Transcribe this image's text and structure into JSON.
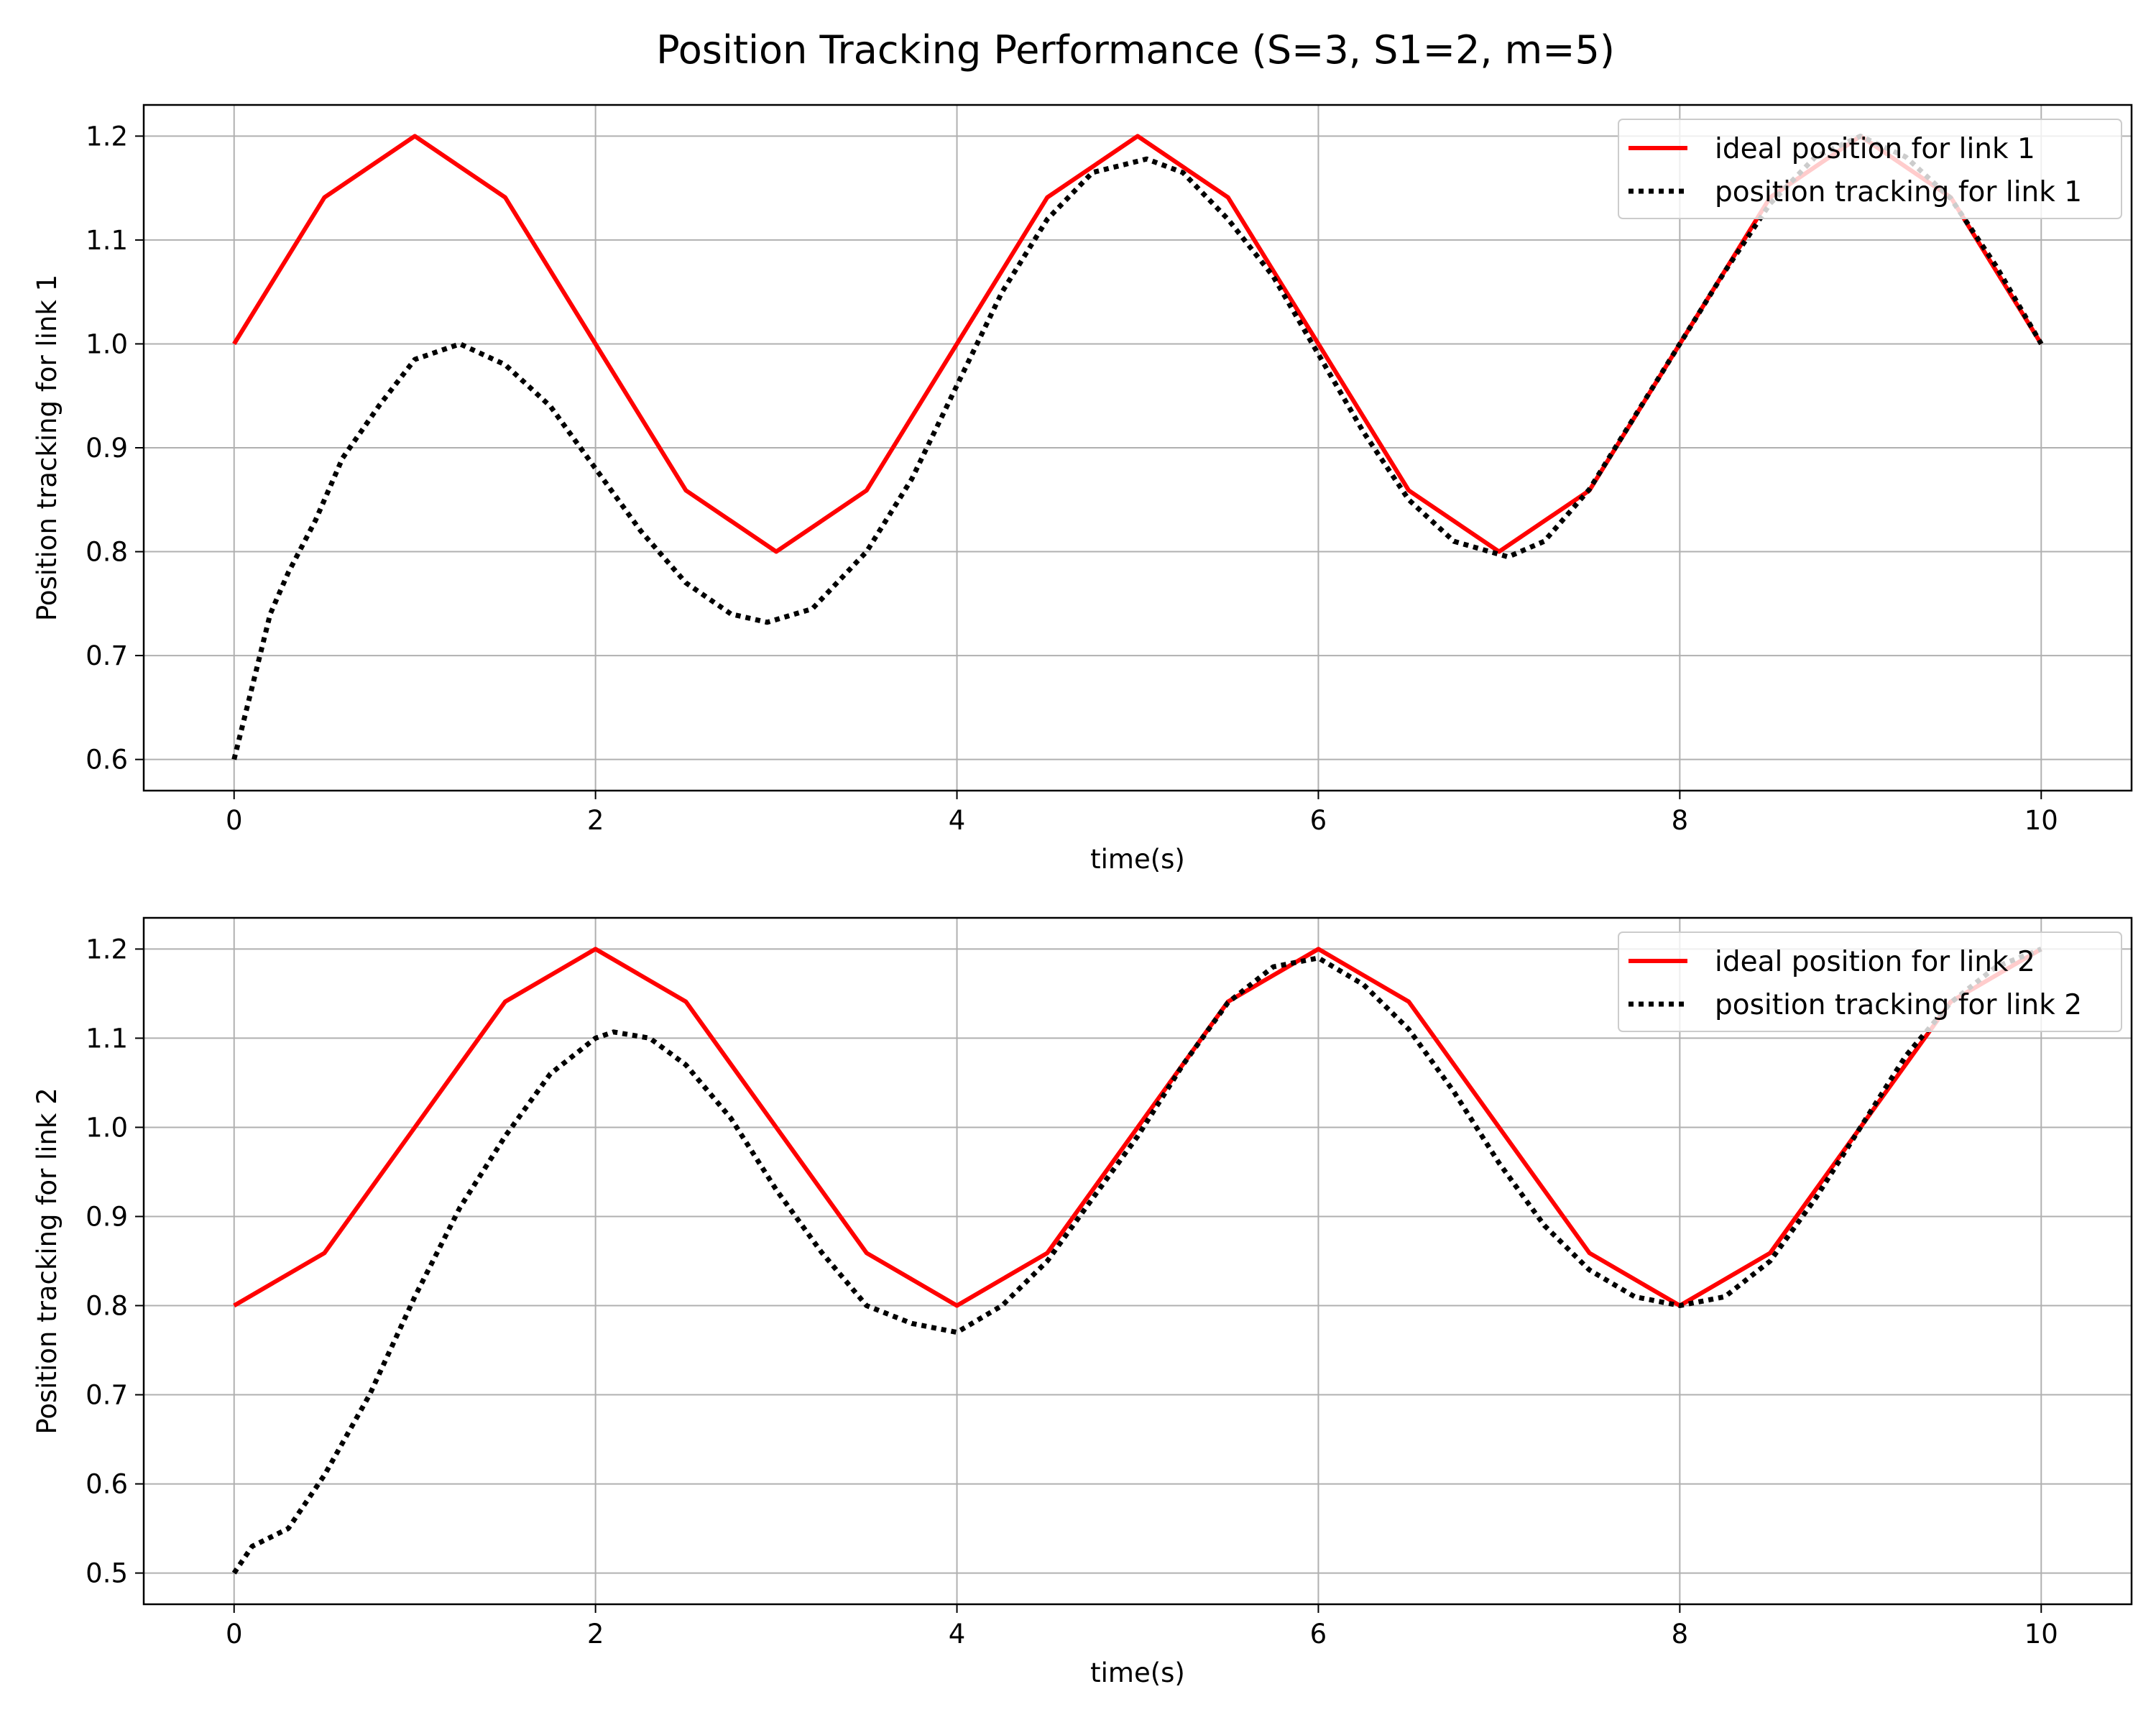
{
  "figure": {
    "title": "Position Tracking Performance (S=3, S1=2, m=5)"
  },
  "colors": {
    "ideal": "#ff0000",
    "tracking": "#000000",
    "grid": "#b0b0b0",
    "frame": "#000000"
  },
  "chart_data": [
    {
      "type": "line",
      "xlabel": "time(s)",
      "ylabel": "Position tracking for link 1",
      "xlim": [
        -0.5,
        10.5
      ],
      "ylim": [
        0.57,
        1.23
      ],
      "xticks": [
        0,
        2,
        4,
        6,
        8,
        10
      ],
      "xtick_labels": [
        "0",
        "2",
        "4",
        "6",
        "8",
        "10"
      ],
      "yticks": [
        0.6,
        0.7,
        0.8,
        0.9,
        1.0,
        1.1,
        1.2
      ],
      "ytick_labels": [
        "0.6",
        "0.7",
        "0.8",
        "0.9",
        "1.0",
        "1.1",
        "1.2"
      ],
      "grid": true,
      "legend_position": "top-right",
      "series": [
        {
          "name": "ideal position for link 1",
          "style": "solid",
          "x": [
            0,
            0.5,
            1,
            1.5,
            2,
            2.5,
            3,
            3.5,
            4,
            4.5,
            5,
            5.5,
            6,
            6.5,
            7,
            7.5,
            8,
            8.5,
            9,
            9.5,
            10
          ],
          "y": [
            1.0,
            1.141,
            1.2,
            1.141,
            1.0,
            0.859,
            0.8,
            0.859,
            1.0,
            1.141,
            1.2,
            1.141,
            1.0,
            0.859,
            0.8,
            0.859,
            1.0,
            1.141,
            1.2,
            1.141,
            1.0
          ]
        },
        {
          "name": "position tracking for link 1",
          "style": "dotted",
          "x": [
            0,
            0.1,
            0.2,
            0.3,
            0.45,
            0.6,
            0.8,
            1.0,
            1.25,
            1.5,
            1.75,
            2.0,
            2.25,
            2.5,
            2.75,
            2.95,
            3.2,
            3.5,
            3.75,
            4.0,
            4.25,
            4.5,
            4.75,
            5.05,
            5.25,
            5.5,
            5.75,
            6.0,
            6.25,
            6.5,
            6.75,
            7.05,
            7.25,
            7.5,
            7.75,
            8.0,
            8.25,
            8.5,
            8.75,
            9.0,
            9.25,
            9.5,
            9.75,
            10.0
          ],
          "y": [
            0.6,
            0.67,
            0.74,
            0.78,
            0.83,
            0.89,
            0.94,
            0.985,
            1.0,
            0.98,
            0.94,
            0.88,
            0.82,
            0.77,
            0.74,
            0.732,
            0.745,
            0.8,
            0.87,
            0.96,
            1.05,
            1.12,
            1.165,
            1.178,
            1.165,
            1.12,
            1.065,
            0.99,
            0.915,
            0.85,
            0.81,
            0.795,
            0.81,
            0.86,
            0.93,
            1.0,
            1.07,
            1.135,
            1.18,
            1.2,
            1.18,
            1.14,
            1.075,
            1.0
          ]
        }
      ]
    },
    {
      "type": "line",
      "xlabel": "time(s)",
      "ylabel": "Position tracking for link 2",
      "xlim": [
        -0.5,
        10.5
      ],
      "ylim": [
        0.465,
        1.235
      ],
      "xticks": [
        0,
        2,
        4,
        6,
        8,
        10
      ],
      "xtick_labels": [
        "0",
        "2",
        "4",
        "6",
        "8",
        "10"
      ],
      "yticks": [
        0.5,
        0.6,
        0.7,
        0.8,
        0.9,
        1.0,
        1.1,
        1.2
      ],
      "ytick_labels": [
        "0.5",
        "0.6",
        "0.7",
        "0.8",
        "0.9",
        "1.0",
        "1.1",
        "1.2"
      ],
      "grid": true,
      "legend_position": "top-right",
      "series": [
        {
          "name": "ideal position for link 2",
          "style": "solid",
          "x": [
            0,
            0.5,
            1,
            1.5,
            2,
            2.5,
            3,
            3.5,
            4,
            4.5,
            5,
            5.5,
            6,
            6.5,
            7,
            7.5,
            8,
            8.5,
            9,
            9.5,
            10
          ],
          "y": [
            0.8,
            0.859,
            1.0,
            1.141,
            1.2,
            1.141,
            1.0,
            0.859,
            0.8,
            0.859,
            1.0,
            1.141,
            1.2,
            1.141,
            1.0,
            0.859,
            0.8,
            0.859,
            1.0,
            1.141,
            1.2
          ]
        },
        {
          "name": "position tracking for link 2",
          "style": "dotted",
          "x": [
            0,
            0.1,
            0.3,
            0.5,
            0.75,
            1.0,
            1.25,
            1.5,
            1.75,
            2.0,
            2.1,
            2.3,
            2.5,
            2.75,
            3.0,
            3.25,
            3.5,
            3.75,
            4.0,
            4.25,
            4.5,
            4.75,
            5.0,
            5.25,
            5.5,
            5.75,
            6.0,
            6.25,
            6.5,
            6.75,
            7.0,
            7.25,
            7.5,
            7.75,
            8.0,
            8.25,
            8.5,
            8.75,
            9.0,
            9.25,
            9.5,
            9.75,
            10.0
          ],
          "y": [
            0.5,
            0.53,
            0.55,
            0.61,
            0.7,
            0.81,
            0.91,
            0.99,
            1.06,
            1.1,
            1.107,
            1.1,
            1.07,
            1.01,
            0.93,
            0.86,
            0.8,
            0.78,
            0.77,
            0.8,
            0.85,
            0.92,
            0.99,
            1.07,
            1.14,
            1.18,
            1.19,
            1.16,
            1.11,
            1.04,
            0.96,
            0.89,
            0.84,
            0.81,
            0.8,
            0.81,
            0.85,
            0.92,
            1.0,
            1.08,
            1.14,
            1.18,
            1.2
          ]
        }
      ]
    }
  ]
}
